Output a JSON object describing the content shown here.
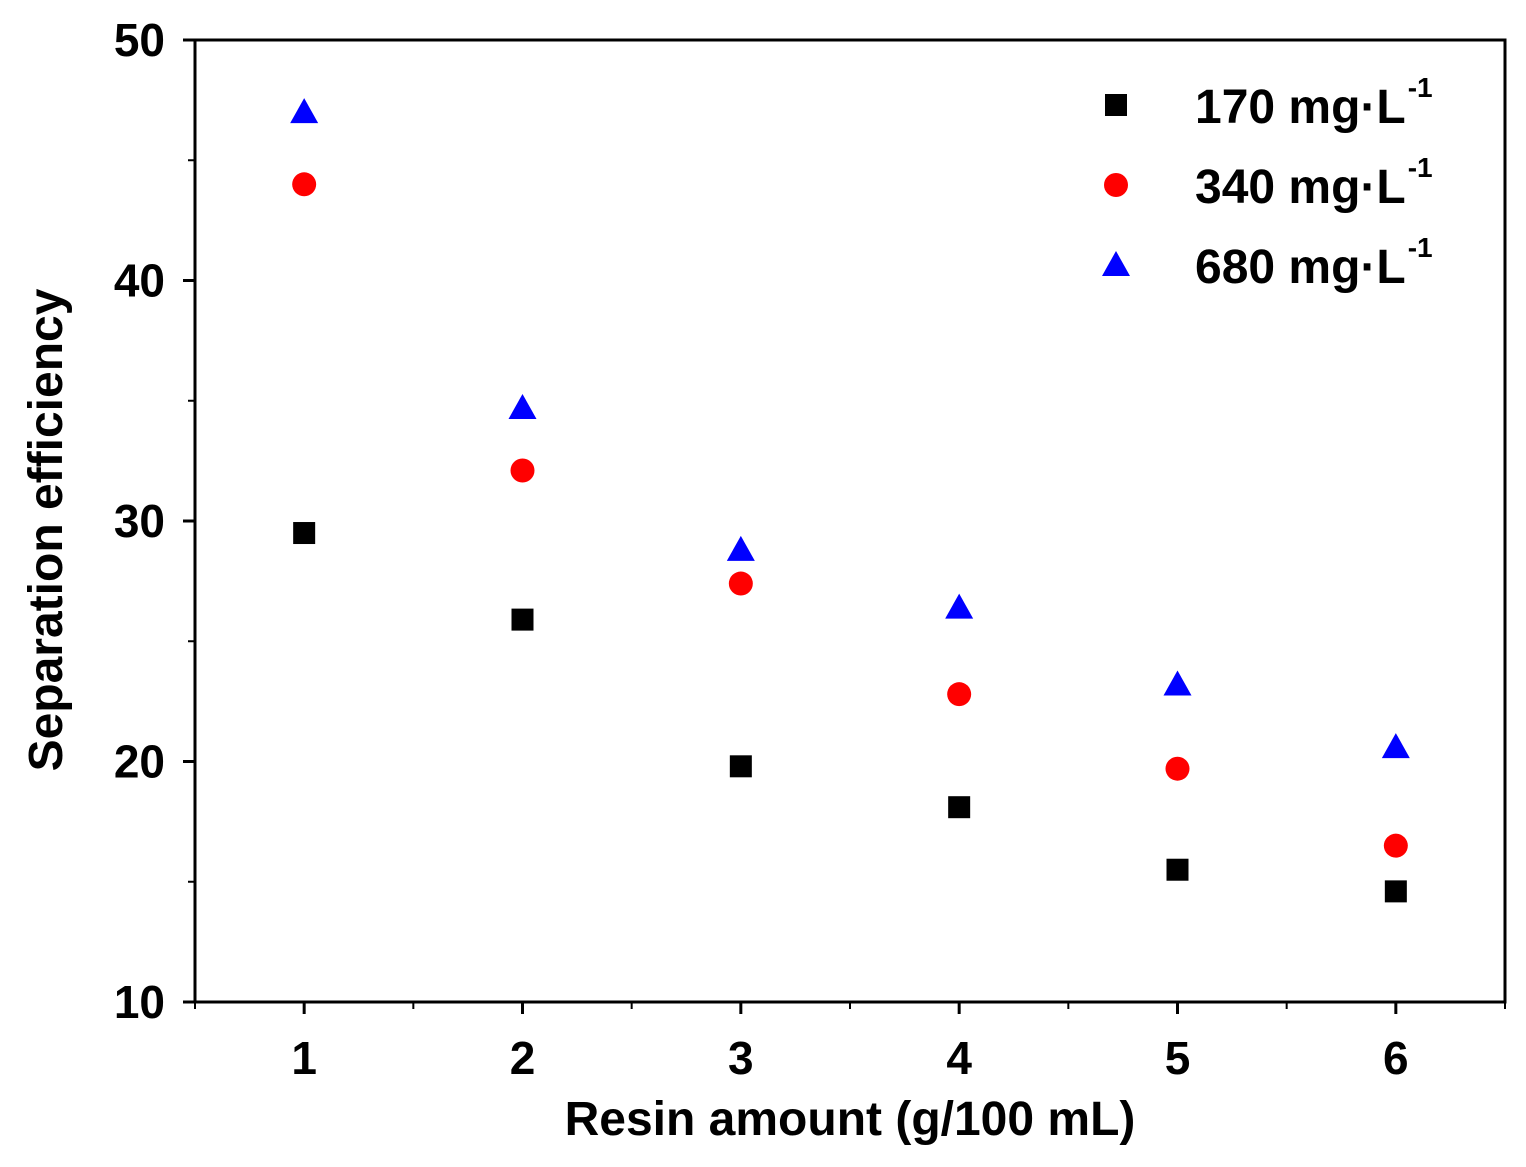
{
  "chart_data": {
    "type": "scatter",
    "title": "",
    "xlabel": "Resin amount (g/100 mL)",
    "ylabel": "Separation efficiency",
    "xlim": [
      0.5,
      6.5
    ],
    "ylim": [
      10,
      50
    ],
    "xticks": [
      1,
      2,
      3,
      4,
      5,
      6
    ],
    "yticks": [
      10,
      20,
      30,
      40,
      50
    ],
    "grid": false,
    "legend_position": "top-right",
    "x": [
      1,
      2,
      3,
      4,
      5,
      6
    ],
    "series": [
      {
        "name": "170 mg·L",
        "superscript": "-1",
        "marker": "square",
        "color": "#000000",
        "values": [
          29.5,
          25.9,
          19.8,
          18.1,
          15.5,
          14.6
        ]
      },
      {
        "name": "340 mg·L",
        "superscript": "-1",
        "marker": "circle",
        "color": "#ff0000",
        "values": [
          44.0,
          32.1,
          27.4,
          22.8,
          19.7,
          16.5
        ]
      },
      {
        "name": "680 mg·L",
        "superscript": "-1",
        "marker": "triangle",
        "color": "#0000ff",
        "values": [
          47.0,
          34.7,
          28.8,
          26.4,
          23.2,
          20.6
        ]
      }
    ]
  }
}
